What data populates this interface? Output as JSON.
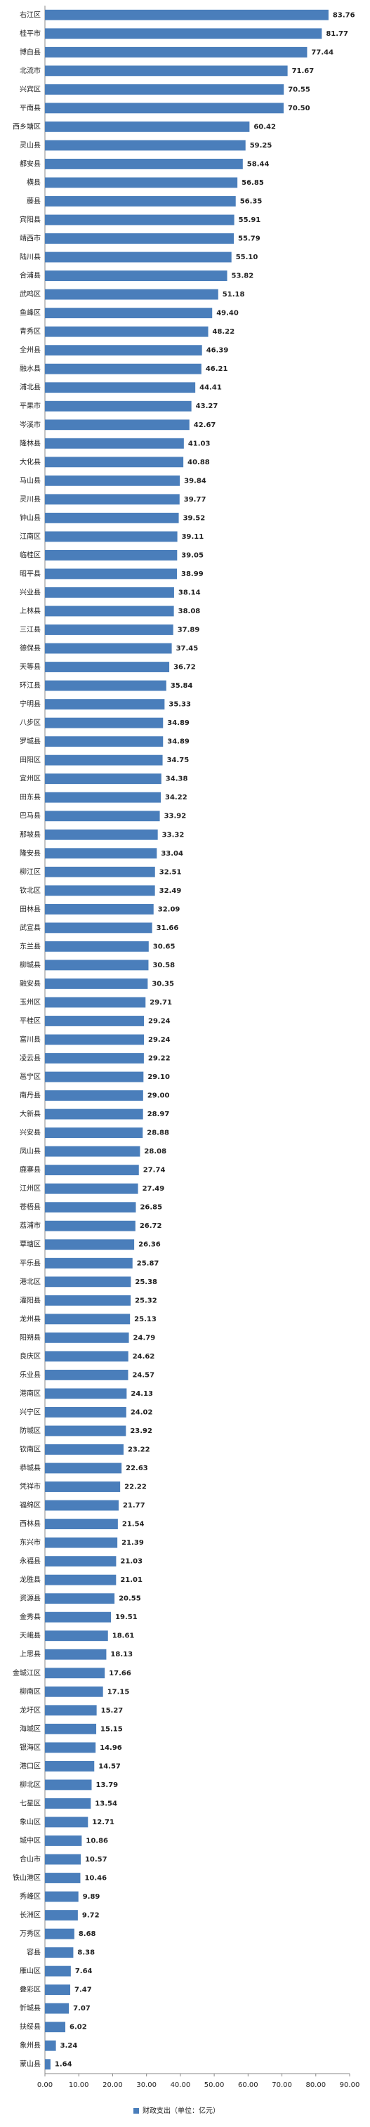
{
  "chart_data": {
    "type": "hbar",
    "categories": [
      "右江区",
      "桂平市",
      "博白县",
      "北流市",
      "兴宾区",
      "平南县",
      "西乡塘区",
      "灵山县",
      "都安县",
      "横县",
      "藤县",
      "宾阳县",
      "靖西市",
      "陆川县",
      "合浦县",
      "武鸣区",
      "鱼峰区",
      "青秀区",
      "全州县",
      "融水县",
      "浦北县",
      "平果市",
      "岑溪市",
      "隆林县",
      "大化县",
      "马山县",
      "灵川县",
      "钟山县",
      "江南区",
      "临桂区",
      "昭平县",
      "兴业县",
      "上林县",
      "三江县",
      "德保县",
      "天等县",
      "环江县",
      "宁明县",
      "八步区",
      "罗城县",
      "田阳区",
      "宜州区",
      "田东县",
      "巴马县",
      "那坡县",
      "隆安县",
      "柳江区",
      "钦北区",
      "田林县",
      "武宣县",
      "东兰县",
      "柳城县",
      "融安县",
      "玉州区",
      "平桂区",
      "富川县",
      "凌云县",
      "邕宁区",
      "南丹县",
      "大新县",
      "兴安县",
      "凤山县",
      "鹿寨县",
      "江州区",
      "苍梧县",
      "荔浦市",
      "覃塘区",
      "平乐县",
      "港北区",
      "灌阳县",
      "龙州县",
      "阳朔县",
      "良庆区",
      "乐业县",
      "港南区",
      "兴宁区",
      "防城区",
      "钦南区",
      "恭城县",
      "凭祥市",
      "福绵区",
      "西林县",
      "东兴市",
      "永福县",
      "龙胜县",
      "资源县",
      "金秀县",
      "天峨县",
      "上思县",
      "金城江区",
      "柳南区",
      "龙圩区",
      "海城区",
      "银海区",
      "港口区",
      "柳北区",
      "七星区",
      "象山区",
      "城中区",
      "合山市",
      "铁山港区",
      "秀峰区",
      "长洲区",
      "万秀区",
      "容县",
      "雁山区",
      "叠彩区",
      "忻城县",
      "扶绥县",
      "象州县",
      "蒙山县"
    ],
    "series": [
      {
        "name": "财政支出（单位：亿元）",
        "color": "#4a7ebb",
        "values": [
          83.76,
          81.77,
          77.44,
          71.67,
          70.55,
          70.5,
          60.42,
          59.25,
          58.44,
          56.85,
          56.35,
          55.91,
          55.79,
          55.1,
          53.82,
          51.18,
          49.4,
          48.22,
          46.39,
          46.21,
          44.41,
          43.27,
          42.67,
          41.03,
          40.88,
          39.84,
          39.77,
          39.52,
          39.11,
          39.05,
          38.99,
          38.14,
          38.08,
          37.89,
          37.45,
          36.72,
          35.84,
          35.33,
          34.89,
          34.89,
          34.75,
          34.38,
          34.22,
          33.92,
          33.32,
          33.04,
          32.51,
          32.49,
          32.09,
          31.66,
          30.65,
          30.58,
          30.35,
          29.71,
          29.24,
          29.24,
          29.22,
          29.1,
          29.0,
          28.97,
          28.88,
          28.08,
          27.74,
          27.49,
          26.85,
          26.72,
          26.36,
          25.87,
          25.38,
          25.32,
          25.13,
          24.79,
          24.62,
          24.57,
          24.13,
          24.02,
          23.92,
          23.22,
          22.63,
          22.22,
          21.77,
          21.54,
          21.39,
          21.03,
          21.01,
          20.55,
          19.51,
          18.61,
          18.13,
          17.66,
          17.15,
          15.27,
          15.15,
          14.96,
          14.57,
          13.79,
          13.54,
          12.71,
          10.86,
          10.57,
          10.46,
          9.89,
          9.72,
          8.68,
          8.38,
          7.64,
          7.47,
          7.07,
          6.02,
          3.24,
          1.64
        ],
        "value_labels": [
          "83.76",
          "81.77",
          "77.44",
          "71.67",
          "70.55",
          "70.50",
          "60.42",
          "59.25",
          "58.44",
          "56.85",
          "56.35",
          "55.91",
          "55.79",
          "55.10",
          "53.82",
          "51.18",
          "49.40",
          "48.22",
          "46.39",
          "46.21",
          "44.41",
          "43.27",
          "42.67",
          "41.03",
          "40.88",
          "39.84",
          "39.77",
          "39.52",
          "39.11",
          "39.05",
          "38.99",
          "38.14",
          "38.08",
          "37.89",
          "37.45",
          "36.72",
          "35.84",
          "35.33",
          "34.89",
          "34.89",
          "34.75",
          "34.38",
          "34.22",
          "33.92",
          "33.32",
          "33.04",
          "32.51",
          "32.49",
          "32.09",
          "31.66",
          "30.65",
          "30.58",
          "30.35",
          "29.71",
          "29.24",
          "29.24",
          "29.22",
          "29.10",
          "29.00",
          "28.97",
          "28.88",
          "28.08",
          "27.74",
          "27.49",
          "26.85",
          "26.72",
          "26.36",
          "25.87",
          "25.38",
          "25.32",
          "25.13",
          "24.79",
          "24.62",
          "24.57",
          "24.13",
          "24.02",
          "23.92",
          "23.22",
          "22.63",
          "22.22",
          "21.77",
          "21.54",
          "21.39",
          "21.03",
          "21.01",
          "20.55",
          "19.51",
          "18.61",
          "18.13",
          "17.66",
          "17.15",
          "15.27",
          "15.15",
          "14.96",
          "14.57",
          "13.79",
          "13.54",
          "12.71",
          "10.86",
          "10.57",
          "10.46",
          "9.89",
          "9.72",
          "8.68",
          "8.38",
          "7.64",
          "7.47",
          "7.07",
          "6.02",
          "3.24",
          "1.64"
        ]
      }
    ],
    "xlim": [
      0,
      90
    ],
    "xticks": [
      {
        "value": 0,
        "label": "0.00"
      },
      {
        "value": 10,
        "label": "10.00"
      },
      {
        "value": 20,
        "label": "20.00"
      },
      {
        "value": 30,
        "label": "30.00"
      },
      {
        "value": 40,
        "label": "40.00"
      },
      {
        "value": 50,
        "label": "50.00"
      },
      {
        "value": 60,
        "label": "60.00"
      },
      {
        "value": 70,
        "label": "70.00"
      },
      {
        "value": 80,
        "label": "80.00"
      },
      {
        "value": 90,
        "label": "90.00"
      }
    ],
    "legend": "bottom"
  }
}
